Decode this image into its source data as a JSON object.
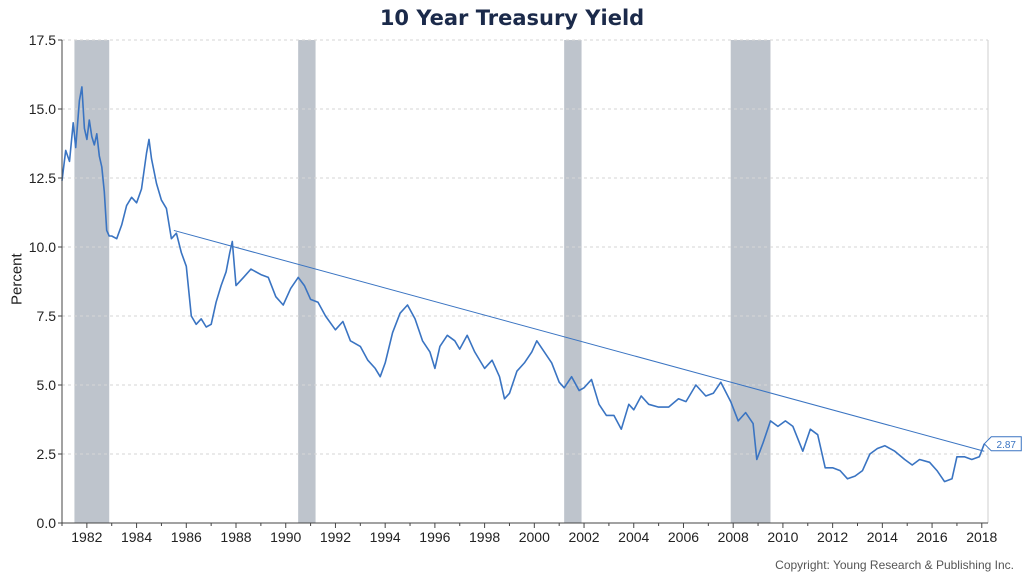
{
  "chart_data": {
    "type": "line",
    "title": "10 Year Treasury Yield",
    "ylabel": "Percent",
    "xlabel": "",
    "xlim": [
      1981.0,
      2018.25
    ],
    "ylim": [
      0,
      17.5
    ],
    "yticks": [
      0,
      2.5,
      5,
      7.5,
      10,
      12.5,
      15,
      17.5
    ],
    "ytick_labels": [
      "0.0",
      "2.5",
      "5.0",
      "7.5",
      "10.0",
      "12.5",
      "15.0",
      "17.5"
    ],
    "xticks": [
      1982,
      1984,
      1986,
      1988,
      1990,
      1992,
      1994,
      1996,
      1998,
      2000,
      2002,
      2004,
      2006,
      2008,
      2010,
      2012,
      2014,
      2016,
      2018
    ],
    "xtick_labels": [
      "1982",
      "1984",
      "1986",
      "1988",
      "1990",
      "1992",
      "1994",
      "1996",
      "1998",
      "2000",
      "2002",
      "2004",
      "2006",
      "2008",
      "2010",
      "2012",
      "2014",
      "2016",
      "2018"
    ],
    "grid": "horizontal-dashed",
    "recessions": [
      {
        "start": 1981.5,
        "end": 1982.9
      },
      {
        "start": 1990.5,
        "end": 1991.2
      },
      {
        "start": 2001.2,
        "end": 2001.9
      },
      {
        "start": 2007.9,
        "end": 2009.5
      }
    ],
    "trendline": {
      "x": [
        1985.5,
        2018.1
      ],
      "y": [
        10.6,
        2.6
      ]
    },
    "latest_label": "2.87",
    "series": [
      {
        "x": [
          1981.0,
          1981.15,
          1981.3,
          1981.45,
          1981.55,
          1981.7,
          1981.8,
          1981.9,
          1982.0,
          1982.1,
          1982.2,
          1982.3,
          1982.4,
          1982.5,
          1982.6,
          1982.7,
          1982.8,
          1982.9,
          1983.0,
          1983.2,
          1983.4,
          1983.6,
          1983.8,
          1984.0,
          1984.2,
          1984.4,
          1984.5,
          1984.6,
          1984.8,
          1985.0,
          1985.2,
          1985.4,
          1985.6,
          1985.8,
          1986.0,
          1986.2,
          1986.4,
          1986.6,
          1986.8,
          1987.0,
          1987.2,
          1987.4,
          1987.6,
          1987.75,
          1987.85,
          1988.0,
          1988.3,
          1988.6,
          1989.0,
          1989.3,
          1989.6,
          1989.9,
          1990.2,
          1990.5,
          1990.75,
          1991.0,
          1991.3,
          1991.6,
          1992.0,
          1992.3,
          1992.6,
          1993.0,
          1993.3,
          1993.6,
          1993.8,
          1994.0,
          1994.3,
          1994.6,
          1994.9,
          1995.2,
          1995.5,
          1995.8,
          1996.0,
          1996.2,
          1996.5,
          1996.8,
          1997.0,
          1997.3,
          1997.6,
          1998.0,
          1998.3,
          1998.6,
          1998.8,
          1999.0,
          1999.3,
          1999.6,
          1999.9,
          2000.1,
          2000.4,
          2000.7,
          2001.0,
          2001.2,
          2001.5,
          2001.8,
          2002.0,
          2002.3,
          2002.6,
          2002.9,
          2003.2,
          2003.5,
          2003.8,
          2004.0,
          2004.3,
          2004.6,
          2005.0,
          2005.4,
          2005.8,
          2006.1,
          2006.5,
          2006.9,
          2007.2,
          2007.5,
          2007.9,
          2008.2,
          2008.5,
          2008.8,
          2008.95,
          2009.2,
          2009.5,
          2009.8,
          2010.1,
          2010.4,
          2010.8,
          2011.1,
          2011.4,
          2011.7,
          2012.0,
          2012.3,
          2012.6,
          2012.9,
          2013.2,
          2013.5,
          2013.8,
          2014.1,
          2014.5,
          2014.9,
          2015.2,
          2015.5,
          2015.9,
          2016.2,
          2016.5,
          2016.8,
          2017.0,
          2017.3,
          2017.6,
          2017.9,
          2018.1
        ],
        "values": [
          12.4,
          13.5,
          13.1,
          14.5,
          13.6,
          15.3,
          15.8,
          14.3,
          13.9,
          14.6,
          14.0,
          13.7,
          14.1,
          13.3,
          12.9,
          12.0,
          10.6,
          10.4,
          10.4,
          10.3,
          10.8,
          11.5,
          11.8,
          11.6,
          12.1,
          13.4,
          13.9,
          13.2,
          12.3,
          11.7,
          11.4,
          10.3,
          10.5,
          9.8,
          9.3,
          7.5,
          7.2,
          7.4,
          7.1,
          7.2,
          8.0,
          8.6,
          9.1,
          9.8,
          10.2,
          8.6,
          8.9,
          9.2,
          9.0,
          8.9,
          8.2,
          7.9,
          8.5,
          8.9,
          8.6,
          8.1,
          8.0,
          7.5,
          7.0,
          7.3,
          6.6,
          6.4,
          5.9,
          5.6,
          5.3,
          5.8,
          6.9,
          7.6,
          7.9,
          7.4,
          6.6,
          6.2,
          5.6,
          6.4,
          6.8,
          6.6,
          6.3,
          6.8,
          6.2,
          5.6,
          5.9,
          5.3,
          4.5,
          4.7,
          5.5,
          5.8,
          6.2,
          6.6,
          6.2,
          5.8,
          5.1,
          4.9,
          5.3,
          4.8,
          4.9,
          5.2,
          4.3,
          3.9,
          3.9,
          3.4,
          4.3,
          4.1,
          4.6,
          4.3,
          4.2,
          4.2,
          4.5,
          4.4,
          5.0,
          4.6,
          4.7,
          5.1,
          4.4,
          3.7,
          4.0,
          3.6,
          2.3,
          2.9,
          3.7,
          3.5,
          3.7,
          3.5,
          2.6,
          3.4,
          3.2,
          2.0,
          2.0,
          1.9,
          1.6,
          1.7,
          1.9,
          2.5,
          2.7,
          2.8,
          2.6,
          2.3,
          2.1,
          2.3,
          2.2,
          1.9,
          1.5,
          1.6,
          2.4,
          2.4,
          2.3,
          2.4,
          2.87
        ]
      }
    ]
  },
  "copyright": "Copyright: Young Research & Publishing Inc."
}
